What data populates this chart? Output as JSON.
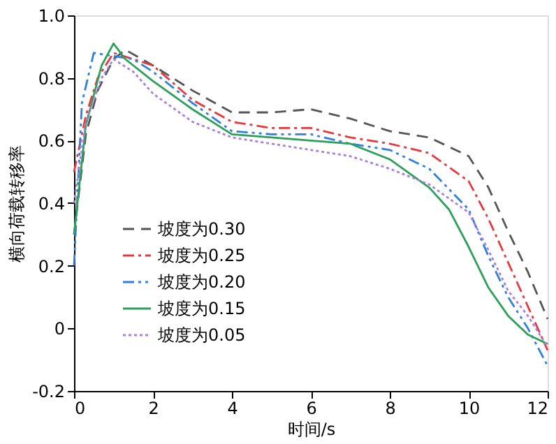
{
  "chart_data": {
    "type": "line",
    "xlabel": "时间/s",
    "ylabel": "横向荷载转移率",
    "xlim": [
      0,
      12
    ],
    "xticks": [
      0,
      2,
      4,
      6,
      8,
      10,
      12
    ],
    "ylim": [
      -0.2,
      1.0
    ],
    "yticks": [
      -0.2,
      {
        "value": 0,
        "label": "0"
      },
      0.2,
      0.4,
      0.6,
      0.8,
      {
        "value": 1.0,
        "label": "1.0"
      }
    ],
    "grid": false,
    "legend": "bottom left",
    "marker": "none",
    "series": [
      {
        "name": "坡度为0.30",
        "color": "#555555",
        "line_style": "dashed",
        "x": [
          0,
          0.3,
          0.6,
          1,
          1.3,
          2,
          3,
          4,
          5,
          6,
          7,
          8,
          9,
          10,
          10.5,
          11,
          11.5,
          12
        ],
        "values": [
          0.3,
          0.62,
          0.76,
          0.86,
          0.89,
          0.84,
          0.76,
          0.69,
          0.69,
          0.7,
          0.67,
          0.63,
          0.61,
          0.55,
          0.45,
          0.31,
          0.18,
          0.03
        ]
      },
      {
        "name": "坡度为0.25",
        "color": "#e8383d",
        "line_style": "dashdot",
        "x": [
          0,
          0.3,
          0.6,
          1,
          1.5,
          2,
          3,
          4,
          5,
          6,
          7,
          8,
          9,
          10,
          10.5,
          11,
          11.5,
          12
        ],
        "values": [
          0.5,
          0.68,
          0.8,
          0.88,
          0.86,
          0.84,
          0.73,
          0.66,
          0.64,
          0.64,
          0.61,
          0.59,
          0.56,
          0.47,
          0.35,
          0.21,
          0.07,
          -0.07
        ]
      },
      {
        "name": "坡度为0.20",
        "color": "#2f7fe0",
        "line_style": "dashdotdot",
        "x": [
          0,
          0.2,
          0.5,
          1,
          1.5,
          2,
          3,
          4,
          5,
          6,
          7,
          8,
          9,
          10,
          10.5,
          11,
          11.5,
          12
        ],
        "values": [
          0.2,
          0.72,
          0.88,
          0.87,
          0.86,
          0.82,
          0.72,
          0.63,
          0.62,
          0.62,
          0.59,
          0.57,
          0.51,
          0.38,
          0.23,
          0.1,
          0.0,
          -0.12
        ]
      },
      {
        "name": "坡度为0.15",
        "color": "#2ca05a",
        "line_style": "solid",
        "x": [
          0,
          0.3,
          0.7,
          1,
          1.3,
          2,
          3,
          4,
          5,
          6,
          7,
          8,
          9,
          9.5,
          10,
          10.5,
          11,
          11.5,
          12
        ],
        "values": [
          0.3,
          0.65,
          0.84,
          0.91,
          0.86,
          0.79,
          0.7,
          0.62,
          0.61,
          0.6,
          0.59,
          0.54,
          0.45,
          0.38,
          0.26,
          0.13,
          0.04,
          -0.02,
          -0.05
        ]
      },
      {
        "name": "坡度为0.05",
        "color": "#a97fe0",
        "line_style": "dotted",
        "x": [
          0,
          0.3,
          0.7,
          1,
          1.5,
          2,
          3,
          4,
          5,
          6,
          7,
          8,
          9,
          10,
          10.5,
          11,
          11.5,
          12
        ],
        "values": [
          0.4,
          0.66,
          0.8,
          0.86,
          0.82,
          0.75,
          0.66,
          0.61,
          0.59,
          0.57,
          0.55,
          0.51,
          0.46,
          0.37,
          0.25,
          0.12,
          0.04,
          -0.06
        ]
      }
    ]
  }
}
